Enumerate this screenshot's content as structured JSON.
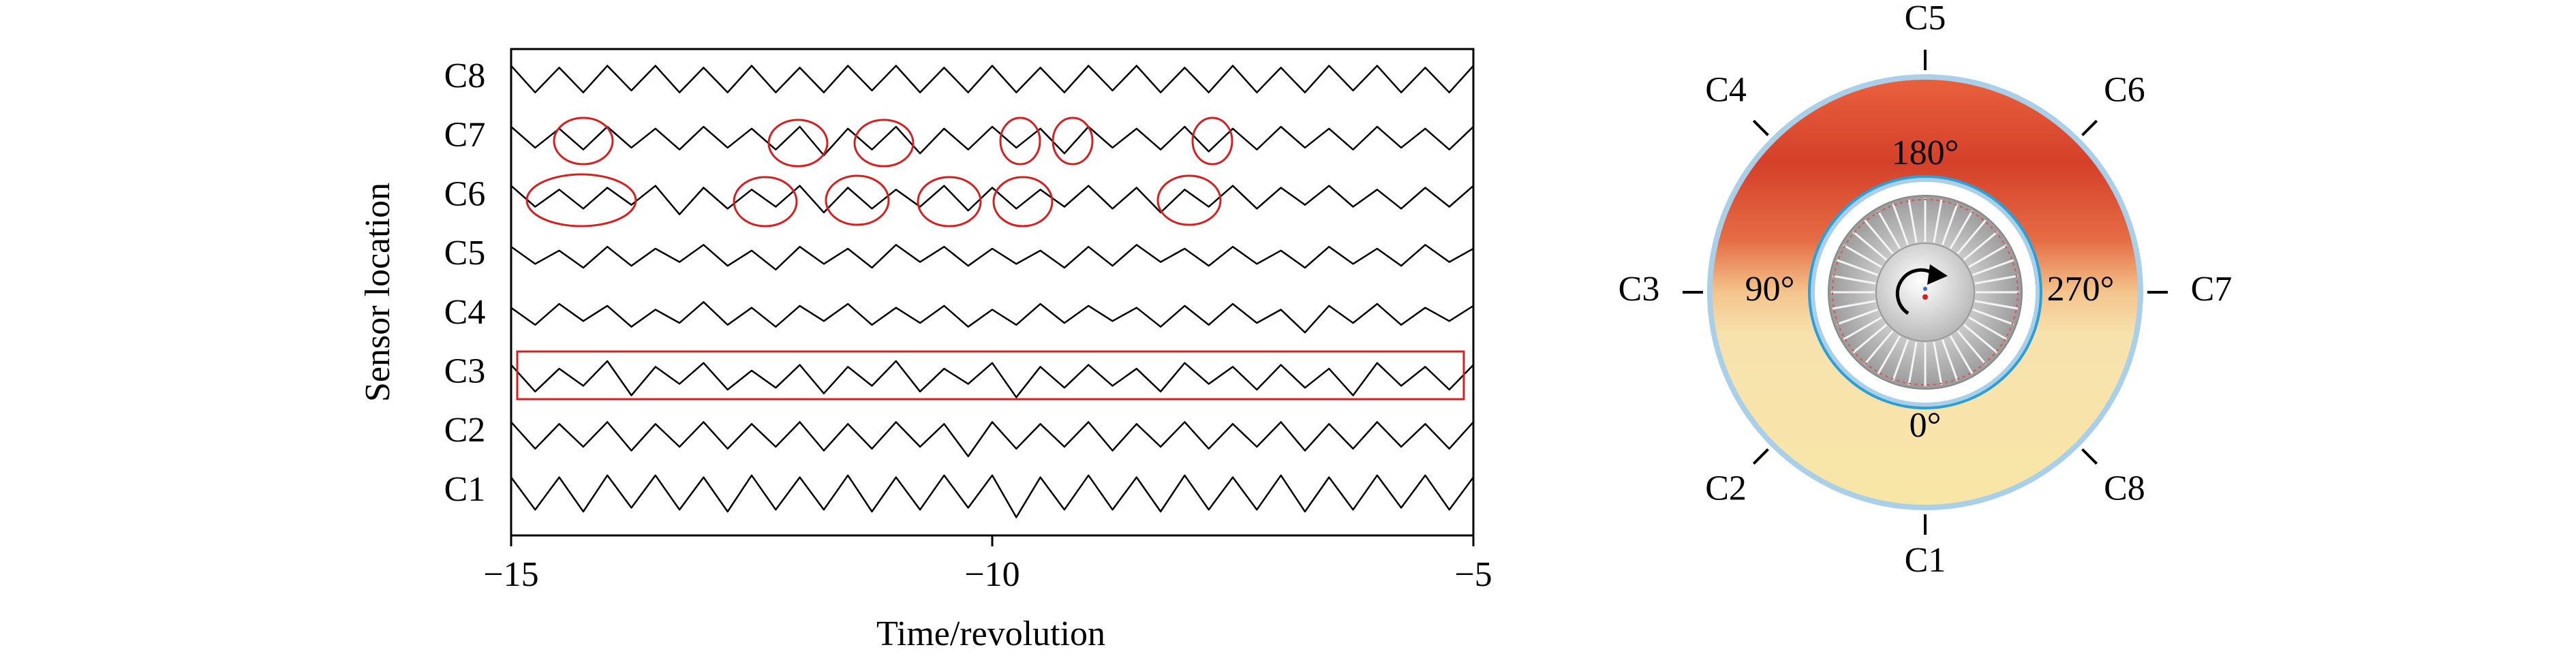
{
  "chart_data": {
    "type": "line",
    "x_label": "Time/revolution",
    "y_label": "Sensor location",
    "categories": [
      "C1",
      "C2",
      "C3",
      "C4",
      "C5",
      "C6",
      "C7",
      "C8"
    ],
    "x": [
      -15,
      -14.75,
      -14.5,
      -14.25,
      -14,
      -13.75,
      -13.5,
      -13.25,
      -13,
      -12.75,
      -12.5,
      -12.25,
      -12,
      -11.75,
      -11.5,
      -11.25,
      -11,
      -10.75,
      -10.5,
      -10.25,
      -10,
      -9.75,
      -9.5,
      -9.25,
      -9,
      -8.75,
      -8.5,
      -8.25,
      -8,
      -7.75,
      -7.5,
      -7.25,
      -7,
      -6.75,
      -6.5,
      -6.25,
      -6,
      -5.75,
      -5.5,
      -5.25,
      -5
    ],
    "series": [
      {
        "color": "#000000",
        "values": [
          0.8,
          -0.9,
          0.8,
          -1,
          0.9,
          -0.8,
          0.9,
          -0.9,
          0.8,
          -1,
          0.9,
          -0.9,
          0.8,
          -0.9,
          0.9,
          -1,
          0.8,
          -0.9,
          0.9,
          -0.8,
          0.9,
          -1.3,
          0.8,
          -0.9,
          0.9,
          -0.9,
          0.8,
          -1,
          0.9,
          -0.9,
          0.8,
          -0.9,
          0.9,
          -1,
          0.8,
          -0.9,
          0.9,
          -0.8,
          0.9,
          -0.9,
          0.8
        ]
      },
      {
        "color": "#000000",
        "values": [
          0.6,
          -0.8,
          0.5,
          -0.7,
          0.6,
          -0.9,
          0.5,
          -0.7,
          0.6,
          -0.8,
          0.5,
          -0.7,
          0.6,
          -0.9,
          0.5,
          -0.8,
          0.6,
          -0.7,
          0.5,
          -1.2,
          0.6,
          -0.8,
          0.5,
          -0.7,
          0.6,
          -0.9,
          0.5,
          -0.7,
          0.6,
          -0.8,
          0.5,
          -0.7,
          0.6,
          -0.9,
          0.5,
          -0.8,
          0.6,
          -0.7,
          0.5,
          -0.8,
          0.6
        ]
      },
      {
        "color": "#000000",
        "values": [
          0.5,
          -0.9,
          0.3,
          -0.6,
          0.7,
          -1.1,
          0.4,
          -0.5,
          0.6,
          -0.8,
          0.2,
          -0.7,
          0.5,
          -1,
          0.4,
          -0.6,
          0.7,
          -0.9,
          0.3,
          -0.5,
          0.6,
          -1.2,
          0.4,
          -0.7,
          0.5,
          -0.6,
          0.3,
          -0.9,
          0.6,
          -0.5,
          0.4,
          -0.8,
          0.5,
          -0.7,
          0.3,
          -1.1,
          0.6,
          -0.6,
          0.4,
          -0.8,
          0.5
        ]
      },
      {
        "color": "#000000",
        "values": [
          0.4,
          -0.5,
          0.6,
          -0.3,
          0.5,
          -0.6,
          0.3,
          -0.4,
          0.7,
          -0.5,
          0.4,
          -0.6,
          0.5,
          -0.3,
          0.6,
          -0.5,
          0.4,
          -0.4,
          0.5,
          -0.6,
          0.3,
          -0.5,
          0.6,
          -0.4,
          0.5,
          -0.3,
          0.4,
          -0.6,
          0.5,
          -0.5,
          0.6,
          -0.4,
          0.3,
          -0.9,
          0.5,
          -0.4,
          0.6,
          -0.5,
          0.4,
          -0.3,
          0.5
        ]
      },
      {
        "color": "#000000",
        "values": [
          0.5,
          -0.4,
          0.3,
          -0.6,
          0.5,
          -0.5,
          0.4,
          -0.3,
          0.6,
          -0.5,
          0.3,
          -0.7,
          0.5,
          -0.4,
          0.4,
          -0.6,
          0.6,
          -0.3,
          0.5,
          -0.5,
          0.4,
          -0.4,
          0.3,
          -0.6,
          0.5,
          -0.5,
          0.6,
          -0.3,
          0.4,
          -0.5,
          0.5,
          -0.4,
          0.3,
          -0.6,
          0.5,
          -0.4,
          0.4,
          -0.5,
          0.6,
          -0.3,
          0.4
        ]
      },
      {
        "color": "#000000",
        "values": [
          0.6,
          -0.5,
          0.4,
          -0.6,
          0.5,
          -0.4,
          0.6,
          -0.9,
          0.5,
          -0.6,
          0.4,
          -0.5,
          0.6,
          -0.8,
          0.5,
          -0.6,
          0.4,
          -0.5,
          0.6,
          -0.7,
          0.5,
          -0.6,
          0.4,
          -0.5,
          0.6,
          -0.6,
          0.5,
          -0.8,
          0.4,
          -0.5,
          0.6,
          -0.6,
          0.5,
          -0.4,
          0.6,
          -0.5,
          0.4,
          -0.6,
          0.5,
          -0.5,
          0.6
        ]
      },
      {
        "color": "#000000",
        "values": [
          0.6,
          -0.5,
          0.5,
          -0.6,
          0.6,
          -0.5,
          0.5,
          -0.6,
          0.6,
          -0.5,
          0.5,
          -0.6,
          0.6,
          -0.9,
          0.5,
          -0.6,
          0.6,
          -0.8,
          0.5,
          -0.6,
          0.6,
          -0.5,
          0.5,
          -0.8,
          0.6,
          -0.5,
          0.5,
          -0.6,
          0.6,
          -0.7,
          0.5,
          -0.6,
          0.6,
          -0.5,
          0.5,
          -0.6,
          0.6,
          -0.5,
          0.5,
          -0.6,
          0.6
        ]
      },
      {
        "color": "#000000",
        "values": [
          0.7,
          -0.7,
          0.6,
          -0.7,
          0.7,
          -0.6,
          0.7,
          -0.7,
          0.6,
          -0.7,
          0.7,
          -0.7,
          0.6,
          -0.7,
          0.7,
          -0.6,
          0.7,
          -0.7,
          0.6,
          -0.7,
          0.7,
          -0.7,
          0.6,
          -0.7,
          0.7,
          -0.6,
          0.7,
          -0.7,
          0.6,
          -0.7,
          0.7,
          -0.7,
          0.6,
          -0.7,
          0.7,
          -0.6,
          0.7,
          -0.7,
          0.6,
          -0.7,
          0.7
        ]
      }
    ],
    "xlim": [
      -15,
      -5
    ],
    "xticks": [
      {
        "value": -15,
        "label": "−15"
      },
      {
        "value": -10,
        "label": "−10"
      },
      {
        "value": -5,
        "label": "−5"
      }
    ]
  },
  "diagram": {
    "sensor_labels": [
      "C1",
      "C2",
      "C3",
      "C4",
      "C5",
      "C6",
      "C7",
      "C8"
    ],
    "angle_labels": [
      "0°",
      "90°",
      "180°",
      "270°"
    ]
  }
}
